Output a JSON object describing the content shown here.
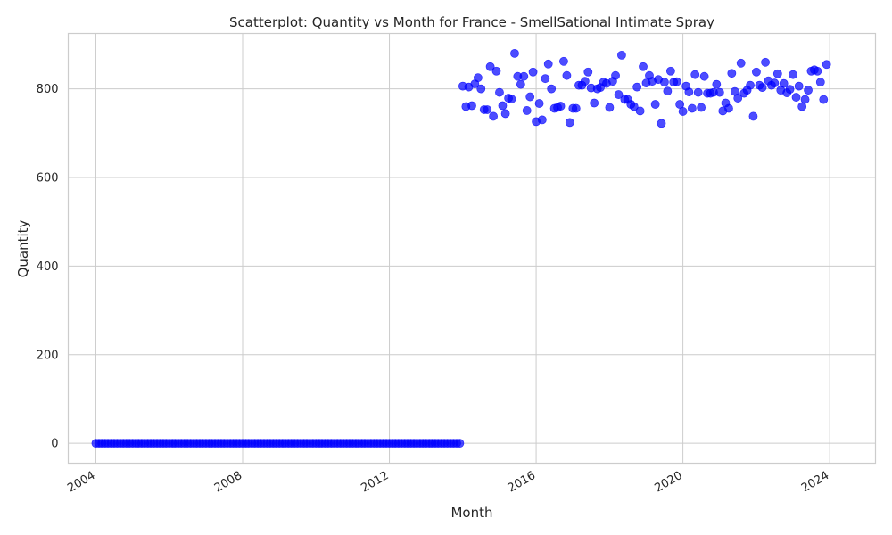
{
  "chart_data": {
    "type": "scatter",
    "title": "Scatterplot: Quantity vs Month for France - SmellSational Intimate Spray",
    "xlabel": "Month",
    "ylabel": "Quantity",
    "x_type": "date",
    "xlim": [
      "2003-04-01",
      "2025-04-01"
    ],
    "ylim": [
      -45,
      925
    ],
    "x_ticks": [
      "2004-01-01",
      "2008-01-01",
      "2012-01-01",
      "2016-01-01",
      "2020-01-01",
      "2024-01-01"
    ],
    "x_tick_labels": [
      "2004",
      "2008",
      "2012",
      "2016",
      "2020",
      "2024"
    ],
    "y_ticks": [
      0,
      200,
      400,
      600,
      800
    ],
    "grid": true,
    "point_color": "#0000ff",
    "point_alpha": 0.7,
    "series": [
      {
        "start": "2004-01",
        "frequency": "monthly",
        "y": [
          0,
          0,
          0,
          0,
          0,
          0,
          0,
          0,
          0,
          0,
          0,
          0,
          0,
          0,
          0,
          0,
          0,
          0,
          0,
          0,
          0,
          0,
          0,
          0,
          0,
          0,
          0,
          0,
          0,
          0,
          0,
          0,
          0,
          0,
          0,
          0,
          0,
          0,
          0,
          0,
          0,
          0,
          0,
          0,
          0,
          0,
          0,
          0,
          0,
          0,
          0,
          0,
          0,
          0,
          0,
          0,
          0,
          0,
          0,
          0,
          0,
          0,
          0,
          0,
          0,
          0,
          0,
          0,
          0,
          0,
          0,
          0,
          0,
          0,
          0,
          0,
          0,
          0,
          0,
          0,
          0,
          0,
          0,
          0,
          0,
          0,
          0,
          0,
          0,
          0,
          0,
          0,
          0,
          0,
          0,
          0,
          0,
          0,
          0,
          0,
          0,
          0,
          0,
          0,
          0,
          0,
          0,
          0,
          0,
          0,
          0,
          0,
          0,
          0,
          0,
          0,
          0,
          0,
          0,
          0,
          806,
          760,
          804,
          762,
          811,
          825,
          800,
          753,
          753,
          850,
          738,
          840,
          792,
          762,
          744,
          779,
          777,
          880,
          828,
          810,
          828,
          751,
          782,
          838,
          726,
          767,
          730,
          823,
          856,
          800,
          756,
          758,
          761,
          862,
          830,
          724,
          756,
          756,
          808,
          808,
          817,
          838,
          802,
          768,
          800,
          803,
          815,
          812,
          758,
          817,
          830,
          787,
          876,
          776,
          776,
          765,
          760,
          804,
          750,
          850,
          813,
          830,
          817,
          765,
          821,
          722,
          815,
          795,
          840,
          815,
          816,
          765,
          749,
          806,
          793,
          756,
          832,
          792,
          758,
          828,
          790,
          790,
          792,
          810,
          792,
          750,
          768,
          756,
          835,
          794,
          779,
          858,
          790,
          797,
          808,
          738,
          838,
          808,
          803,
          860,
          818,
          808,
          813,
          834,
          797,
          812,
          791,
          799,
          832,
          781,
          806,
          760,
          776,
          797,
          840,
          843,
          840,
          815,
          776,
          855
        ]
      }
    ]
  }
}
